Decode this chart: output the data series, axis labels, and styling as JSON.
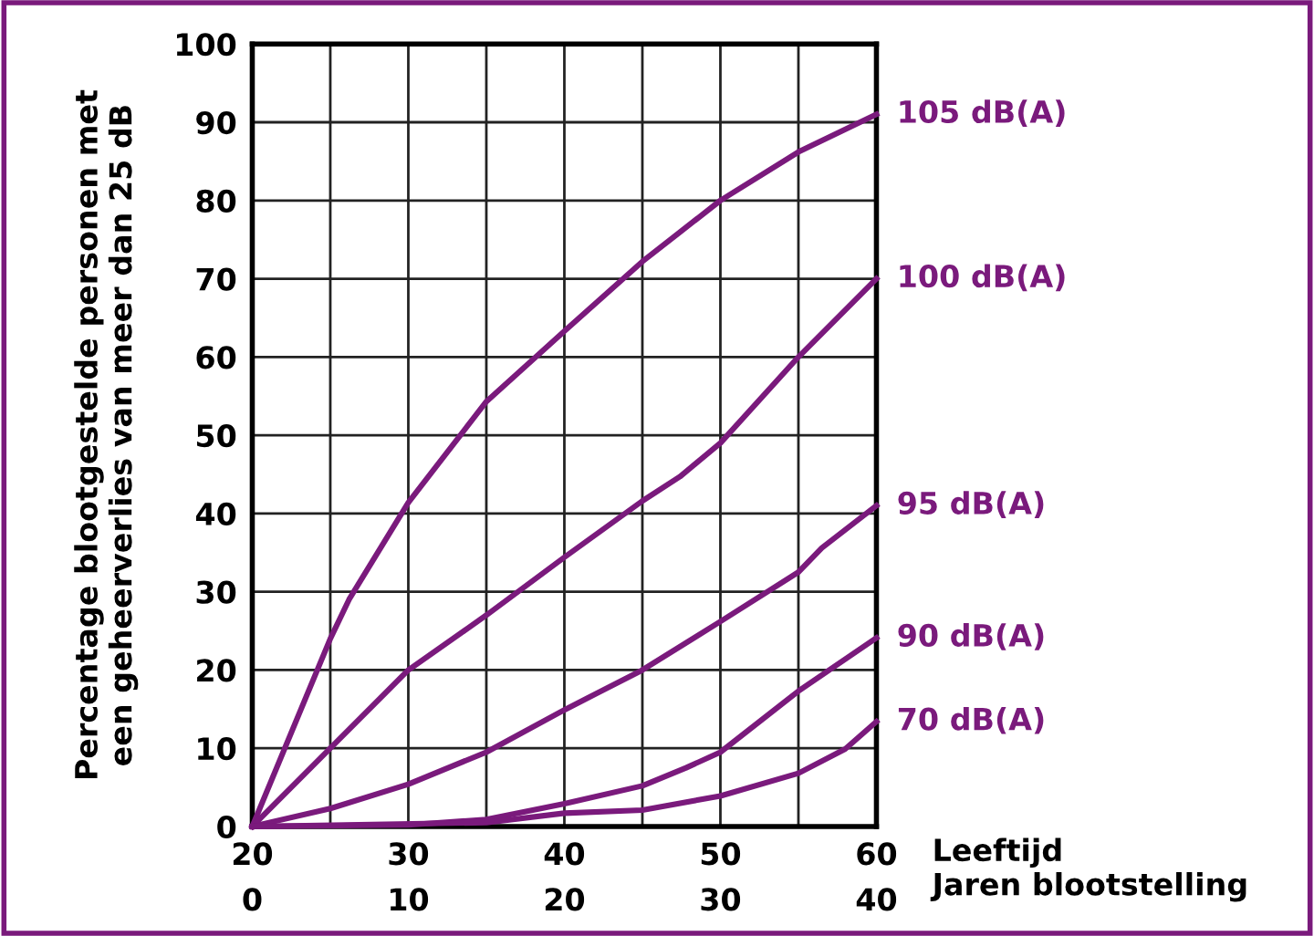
{
  "chart_data": {
    "type": "line",
    "ylabel": "Percentage blootgestelde personen met\neen geheerverlies van meer dan 25 dB",
    "xlabel": "Leeftijd",
    "x2label": "Jaren blootstelling",
    "xlim": [
      20,
      60
    ],
    "xticks": [
      20,
      {
        "value": 25,
        "label": null
      },
      30,
      {
        "value": 35,
        "label": null
      },
      40,
      {
        "value": 45,
        "label": null
      },
      50,
      {
        "value": 55,
        "label": null
      },
      60
    ],
    "x2lim": [
      0,
      40
    ],
    "x2ticks": [
      0,
      10,
      20,
      30,
      40
    ],
    "ylim": [
      0,
      100
    ],
    "yticks": [
      0,
      10,
      20,
      30,
      40,
      50,
      60,
      70,
      80,
      90,
      100
    ],
    "grid": true,
    "legend": false,
    "marker": "none",
    "line_style": "solid",
    "series": [
      {
        "name": "105 dB(A)",
        "color": "#7a1a7c",
        "x": [
          20,
          25,
          26.2,
          30,
          35,
          40,
          45,
          50,
          55,
          60
        ],
        "values": [
          0,
          24,
          29,
          41.4,
          54.3,
          63.3,
          72.2,
          80,
          86.2,
          91
        ]
      },
      {
        "name": "100 dB(A)",
        "color": "#7a1a7c",
        "x": [
          20,
          25,
          30,
          35,
          40,
          45,
          47.4,
          50,
          55,
          60
        ],
        "values": [
          0,
          10,
          20,
          27,
          34.4,
          41.6,
          44.7,
          49,
          60,
          70
        ]
      },
      {
        "name": "95 dB(A)",
        "color": "#7a1a7c",
        "x": [
          20,
          25,
          30,
          35,
          40,
          45,
          50,
          55,
          56.5,
          60
        ],
        "values": [
          0,
          2.3,
          5.4,
          9.5,
          14.9,
          20,
          26.2,
          32.5,
          35.6,
          41
        ]
      },
      {
        "name": "90 dB(A)",
        "color": "#7a1a7c",
        "x": [
          20,
          30,
          35,
          40,
          45,
          47.8,
          50,
          55,
          60
        ],
        "values": [
          0,
          0.2,
          0.9,
          2.9,
          5.2,
          7.5,
          9.5,
          17.3,
          24.1
        ]
      },
      {
        "name": "70 dB(A)",
        "color": "#7a1a7c",
        "x": [
          20,
          35,
          40,
          45,
          50,
          55,
          58,
          60
        ],
        "values": [
          0,
          0.5,
          1.7,
          2.1,
          3.9,
          6.8,
          9.9,
          13.4
        ]
      }
    ]
  }
}
